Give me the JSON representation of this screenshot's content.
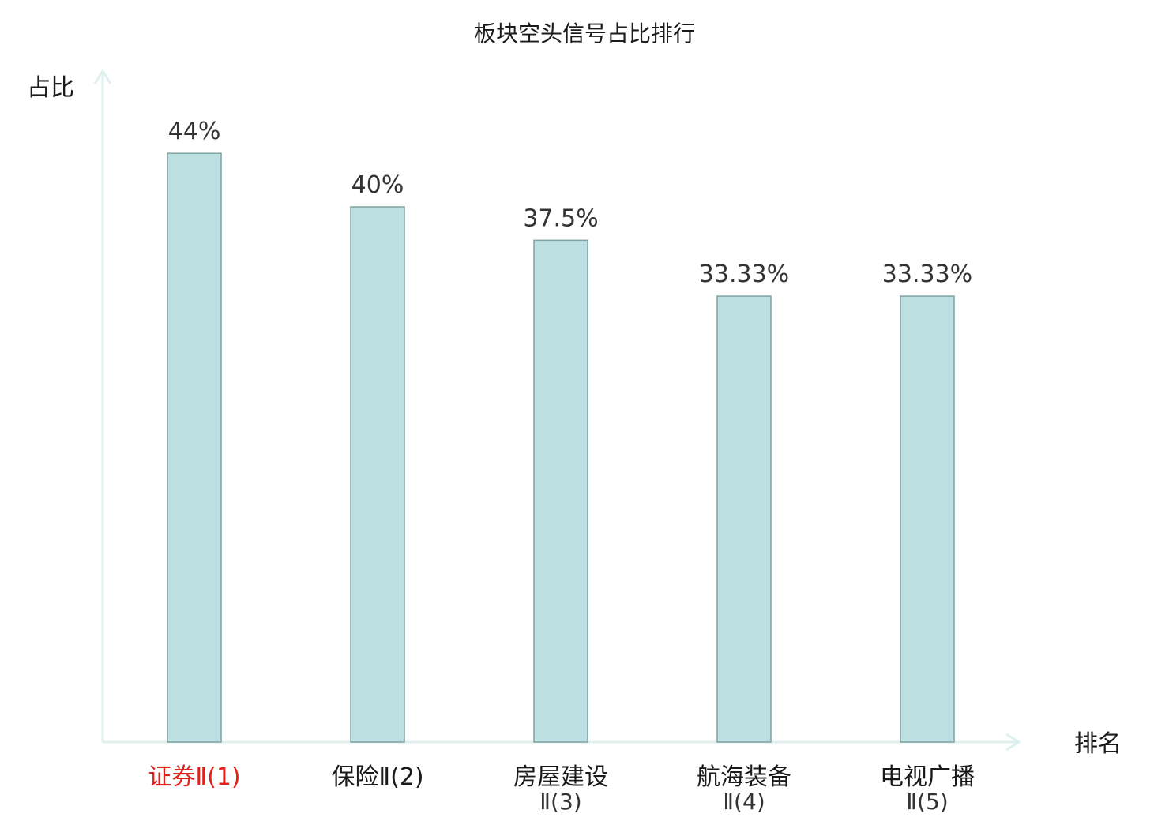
{
  "chart_data": {
    "type": "bar",
    "title": "板块空头信号占比排行",
    "xlabel": "排名",
    "ylabel": "占比",
    "categories": [
      {
        "line1": "证券Ⅱ(1)",
        "line2": "",
        "highlight": true
      },
      {
        "line1": "保险Ⅱ(2)",
        "line2": "",
        "highlight": false
      },
      {
        "line1": "房屋建设",
        "line2": "Ⅱ(3)",
        "highlight": false
      },
      {
        "line1": "航海装备",
        "line2": "Ⅱ(4)",
        "highlight": false
      },
      {
        "line1": "电视广播",
        "line2": "Ⅱ(5)",
        "highlight": false
      }
    ],
    "values": [
      44,
      40,
      37.5,
      33.33,
      33.33
    ],
    "value_labels": [
      "44%",
      "40%",
      "37.5%",
      "33.33%",
      "33.33%"
    ],
    "ylim": [
      0,
      50
    ],
    "grid": false,
    "legend": "none",
    "colors": {
      "bar_fill": "#bce0e1",
      "bar_stroke": "#7fa3a3",
      "axis": "#dff0ee",
      "highlight_label": "#e0201b",
      "label": "#1a1a1a",
      "value_label": "#333333"
    }
  }
}
